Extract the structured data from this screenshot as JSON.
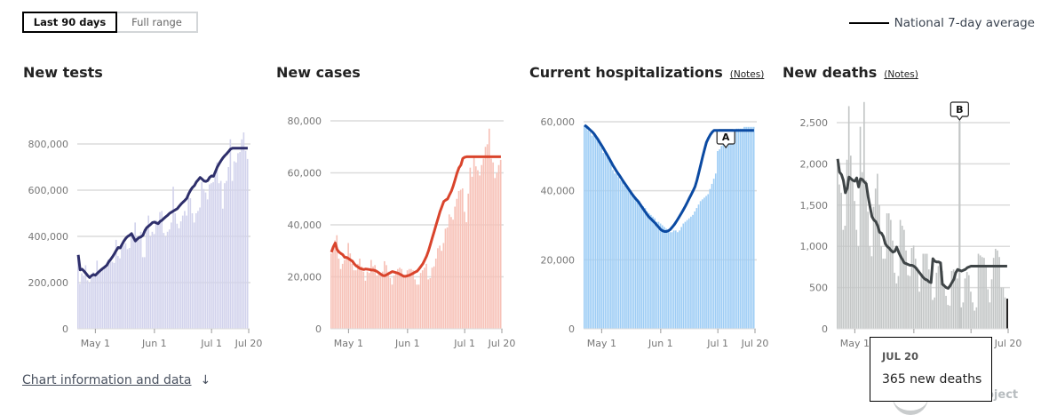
{
  "controls": {
    "range_options": [
      "Last 90 days",
      "Full range"
    ],
    "selected_range": "Last 90 days"
  },
  "legend": {
    "label": "National 7-day average",
    "line_color": "#000000"
  },
  "footer": {
    "info_link": "Chart information and data",
    "info_arrow": "↓",
    "logo_visible_text": "oject"
  },
  "tooltip": {
    "date": "JUL 20",
    "value_text": "365 new deaths"
  },
  "chart_data": [
    {
      "type": "bar",
      "title": "New tests",
      "notes_link": "",
      "bar_color": "#d2d3ec",
      "line_color": "#2e2f6b",
      "ylim": [
        0,
        850000
      ],
      "yticks": [
        0,
        200000,
        400000,
        600000,
        800000
      ],
      "ytick_labels": [
        "0",
        "200,000",
        "400,000",
        "600,000",
        "800,000"
      ],
      "xticks": [
        9,
        40,
        70,
        89
      ],
      "xtick_labels": [
        "May 1",
        "Jun 1",
        "Jul 1",
        "Jul 20"
      ],
      "x_start": "Apr 22",
      "x_end": "Jul 20",
      "values": [
        310000,
        195000,
        240000,
        230000,
        275000,
        210000,
        200000,
        220000,
        245000,
        235000,
        295000,
        240000,
        245000,
        255000,
        270000,
        265000,
        300000,
        295000,
        290000,
        285000,
        385000,
        315000,
        305000,
        365000,
        360000,
        370000,
        345000,
        350000,
        405000,
        410000,
        460000,
        400000,
        385000,
        420000,
        310000,
        310000,
        435000,
        490000,
        400000,
        420000,
        410000,
        470000,
        465000,
        505000,
        510000,
        415000,
        400000,
        420000,
        430000,
        460000,
        615000,
        500000,
        455000,
        435000,
        465000,
        490000,
        510000,
        490000,
        570000,
        565000,
        500000,
        460000,
        500000,
        510000,
        525000,
        635000,
        605000,
        590000,
        560000,
        625000,
        630000,
        635000,
        665000,
        720000,
        630000,
        640000,
        520000,
        630000,
        640000,
        700000,
        820000,
        640000,
        725000,
        720000,
        760000,
        765000,
        820000,
        850000,
        770000,
        735000
      ],
      "avg": [
        320000,
        255000,
        258000,
        250000,
        240000,
        230000,
        222000,
        230000,
        235000,
        232000,
        240000,
        248000,
        255000,
        262000,
        268000,
        275000,
        290000,
        300000,
        312000,
        325000,
        340000,
        352000,
        350000,
        365000,
        380000,
        392000,
        400000,
        405000,
        412000,
        395000,
        380000,
        388000,
        395000,
        398000,
        405000,
        425000,
        438000,
        445000,
        452000,
        460000,
        462000,
        458000,
        455000,
        465000,
        470000,
        478000,
        485000,
        492000,
        500000,
        505000,
        510000,
        515000,
        520000,
        530000,
        540000,
        548000,
        556000,
        565000,
        585000,
        600000,
        612000,
        620000,
        635000,
        645000,
        655000,
        648000,
        640000,
        638000,
        642000,
        655000,
        662000,
        660000,
        680000,
        700000,
        715000,
        728000,
        740000,
        750000,
        758000,
        768000,
        778000,
        782000,
        782000,
        782000,
        782000,
        782000,
        782000,
        782000,
        782000,
        782000
      ]
    },
    {
      "type": "bar",
      "title": "New cases",
      "notes_link": "",
      "bar_color": "#f7c1b7",
      "line_color": "#d9442c",
      "ylim": [
        0,
        80000
      ],
      "yticks": [
        0,
        20000,
        40000,
        60000,
        80000
      ],
      "ytick_labels": [
        "0",
        "20,000",
        "40,000",
        "60,000",
        "80,000"
      ],
      "xticks": [
        9,
        40,
        70,
        89
      ],
      "xtick_labels": [
        "May 1",
        "Jun 1",
        "Jul 1",
        "Jul 20"
      ],
      "x_start": "Apr 22",
      "x_end": "Jul 20",
      "values": [
        29000,
        31000,
        34000,
        36000,
        27000,
        23000,
        25000,
        26500,
        27500,
        33000,
        29000,
        25000,
        22500,
        22500,
        25000,
        27000,
        24000,
        22000,
        18500,
        22000,
        21500,
        26500,
        24000,
        24500,
        20500,
        21000,
        21500,
        22000,
        26000,
        24500,
        22000,
        19500,
        17000,
        20500,
        21500,
        23000,
        23500,
        23000,
        20000,
        20500,
        22500,
        23000,
        23000,
        22500,
        19000,
        17000,
        17000,
        21500,
        22500,
        23500,
        25000,
        19000,
        19500,
        23500,
        24000,
        27000,
        31000,
        32000,
        30000,
        33000,
        38500,
        39000,
        44000,
        43000,
        42000,
        47000,
        50000,
        53000,
        53500,
        54000,
        45000,
        41000,
        52000,
        62000,
        58500,
        66500,
        62500,
        61000,
        59000,
        63000,
        65500,
        70000,
        71000,
        77000,
        65500,
        64000,
        58000,
        60000,
        63000,
        65000
      ],
      "avg": [
        29500,
        31500,
        33000,
        30500,
        29500,
        29000,
        28500,
        27500,
        27500,
        27000,
        26500,
        26000,
        25000,
        24200,
        23800,
        23200,
        23000,
        22800,
        23000,
        22900,
        22800,
        22600,
        22600,
        22400,
        22000,
        21500,
        21000,
        20500,
        20400,
        20800,
        21200,
        21600,
        22000,
        21800,
        21600,
        21400,
        21000,
        20600,
        20200,
        20200,
        20400,
        20600,
        21000,
        21400,
        21800,
        22200,
        23000,
        24000,
        25000,
        26500,
        28000,
        30000,
        32500,
        35000,
        37500,
        40000,
        42500,
        45000,
        47000,
        49000,
        49500,
        50000,
        51500,
        53000,
        55000,
        57500,
        60000,
        62000,
        63000,
        65500,
        66000,
        66200,
        66200,
        66200,
        66200,
        66200,
        66200,
        66200,
        66200,
        66200,
        66200,
        66200,
        66200,
        66200,
        66200,
        66200,
        66200,
        66200,
        66200,
        66200
      ]
    },
    {
      "type": "bar",
      "title": "Current hospitalizations",
      "notes_link": "(Notes)",
      "annotation": "A",
      "bar_color": "#9ecdf5",
      "line_color": "#0b4aa2",
      "ylim": [
        0,
        60000
      ],
      "yticks": [
        0,
        20000,
        40000,
        60000
      ],
      "ytick_labels": [
        "0",
        "20,000",
        "40,000",
        "60,000"
      ],
      "xticks": [
        9,
        40,
        70,
        89
      ],
      "xtick_labels": [
        "May 1",
        "Jun 1",
        "Jul 1",
        "Jul 20"
      ],
      "x_start": "Apr 22",
      "x_end": "Jul 20",
      "values": [
        59000,
        58500,
        57500,
        57000,
        56000,
        56000,
        55500,
        55000,
        53500,
        52500,
        51000,
        51000,
        50500,
        49000,
        48000,
        46000,
        45000,
        45000,
        44000,
        43000,
        42500,
        41500,
        41500,
        41000,
        40000,
        39500,
        38500,
        37500,
        37500,
        37000,
        36000,
        35500,
        35000,
        34000,
        33500,
        33000,
        32500,
        32000,
        31000,
        31000,
        30500,
        30000,
        29500,
        29000,
        28500,
        28000,
        28000,
        28500,
        28500,
        28000,
        28500,
        29500,
        30500,
        31000,
        31500,
        32000,
        32500,
        33000,
        34000,
        35000,
        36000,
        37000,
        37500,
        38000,
        38500,
        39000,
        40500,
        42000,
        43500,
        45000,
        51500,
        52000,
        53000,
        53500,
        55000,
        56000,
        57000,
        57500,
        57500,
        57500,
        58000,
        58000,
        58000,
        58000,
        58500,
        58500,
        58500,
        58500,
        58500,
        58500
      ],
      "avg": [
        59000,
        58600,
        58100,
        57600,
        57100,
        56500,
        55700,
        54900,
        54000,
        53100,
        52200,
        51200,
        50300,
        49300,
        48300,
        47300,
        46400,
        45500,
        44700,
        43900,
        43000,
        42200,
        41400,
        40600,
        39800,
        39000,
        38300,
        37600,
        37000,
        36200,
        35400,
        34600,
        33800,
        33000,
        32300,
        31800,
        31200,
        30700,
        30000,
        29400,
        28800,
        28400,
        28200,
        28200,
        28400,
        28800,
        29400,
        30100,
        30900,
        31800,
        32700,
        33600,
        34600,
        35600,
        36700,
        37800,
        38900,
        40000,
        41200,
        43000,
        45200,
        47500,
        49800,
        52000,
        54000,
        55200,
        56200,
        57000,
        57500,
        57500,
        57500,
        57500,
        57500,
        57500,
        57500,
        57500,
        57500,
        57500,
        57500,
        57500,
        57500,
        57500,
        57500,
        57500,
        57500,
        57500,
        57500,
        57500,
        57500,
        57500
      ]
    },
    {
      "type": "bar",
      "title": "New deaths",
      "notes_link": "(Notes)",
      "annotation": "B",
      "bar_color": "#c3c6c6",
      "line_color": "#3f4547",
      "highlight_color": "#222222",
      "ylim": [
        0,
        2800
      ],
      "yticks": [
        0,
        500,
        1000,
        1500,
        2000,
        2500
      ],
      "ytick_labels": [
        "0",
        "500",
        "1,000",
        "1,500",
        "2,000",
        "2,500"
      ],
      "xticks": [
        9,
        40,
        70,
        89
      ],
      "xtick_labels": [
        "May 1",
        "Jun 1",
        "Jul 1",
        "Jul 20"
      ],
      "x_start": "Apr 22",
      "x_end": "Jul 20",
      "values": [
        2000,
        1750,
        1650,
        1200,
        1250,
        2050,
        2700,
        2100,
        1800,
        1550,
        1200,
        1000,
        2450,
        1900,
        2750,
        1800,
        1420,
        1000,
        880,
        1480,
        1700,
        1880,
        1500,
        1000,
        850,
        850,
        1400,
        1400,
        1320,
        1070,
        680,
        550,
        640,
        1320,
        1250,
        1200,
        950,
        650,
        640,
        980,
        1010,
        850,
        740,
        450,
        660,
        910,
        910,
        910,
        720,
        640,
        350,
        380,
        680,
        760,
        730,
        700,
        550,
        400,
        290,
        280,
        700,
        720,
        680,
        610,
        500,
        260,
        320,
        610,
        690,
        650,
        450,
        320,
        220,
        260,
        910,
        890,
        870,
        860,
        750,
        480,
        320,
        600,
        860,
        970,
        950,
        870,
        500,
        500,
        380,
        365
      ],
      "avg": [
        2060,
        1900,
        1870,
        1800,
        1650,
        1700,
        1840,
        1820,
        1800,
        1790,
        1830,
        1720,
        1820,
        1810,
        1780,
        1760,
        1600,
        1480,
        1360,
        1320,
        1300,
        1250,
        1170,
        1160,
        1120,
        1030,
        1000,
        980,
        950,
        930,
        940,
        990,
        930,
        880,
        840,
        800,
        790,
        780,
        770,
        770,
        760,
        740,
        710,
        680,
        650,
        620,
        600,
        590,
        570,
        560,
        850,
        820,
        810,
        810,
        800,
        540,
        520,
        500,
        490,
        520,
        560,
        600,
        680,
        720,
        710,
        700,
        710,
        720,
        740,
        750,
        760,
        760,
        760,
        760,
        760,
        760,
        760,
        760,
        760,
        760,
        760,
        760,
        760,
        760,
        760,
        760,
        760,
        760,
        760,
        760
      ],
      "highlight_index": 89,
      "annotation_index": 64,
      "annotation_value": 2500
    }
  ]
}
